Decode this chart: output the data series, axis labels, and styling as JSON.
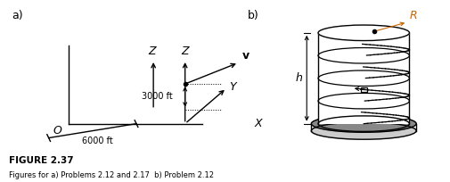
{
  "bg_color": "#ffffff",
  "label_a": "a)",
  "label_b": "b)",
  "fig_title": "FIGURE 2.37",
  "fig_subtitle": "Figures for a) Problems 2.12 and 2.17  b) Problem 2.12",
  "Z_label": "Z",
  "Y_label": "Y",
  "X_label": "X",
  "v_label": "v",
  "dim_6000": "6000 ft",
  "dim_3000": "3000 ft",
  "origin_label": "O",
  "R_label": "R",
  "h_label": "h",
  "line_color": "#000000",
  "R_label_color": "#cc6600",
  "base_fill": "#888888",
  "plat_fill": "#cccccc"
}
